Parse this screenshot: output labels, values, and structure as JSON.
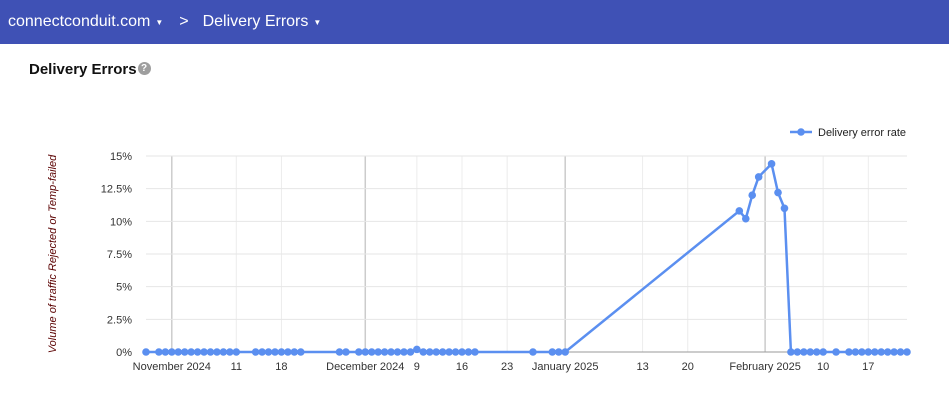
{
  "header": {
    "domain": "connectconduit.com",
    "separator": ">",
    "section": "Delivery Errors"
  },
  "page": {
    "title": "Delivery Errors",
    "help_icon": "question-circle-icon"
  },
  "colors": {
    "header": "#3f51b5",
    "series": "#5b8ff0"
  },
  "chart_data": {
    "type": "line",
    "title": "",
    "xlabel": "",
    "ylabel": "Volume of traffic Rejected or Temp-failed",
    "ylim": [
      0,
      15
    ],
    "yticks": [
      "0%",
      "2.5%",
      "5%",
      "7.5%",
      "10%",
      "12.5%",
      "15%"
    ],
    "ytick_values": [
      0,
      2.5,
      5,
      7.5,
      10,
      12.5,
      15
    ],
    "xlim": [
      "2024-10-28",
      "2025-02-23"
    ],
    "xticks": [
      {
        "date": "2024-11-01",
        "label": "November 2024",
        "month": true
      },
      {
        "date": "2024-11-11",
        "label": "11"
      },
      {
        "date": "2024-11-18",
        "label": "18"
      },
      {
        "date": "2024-12-01",
        "label": "December 2024",
        "month": true
      },
      {
        "date": "2024-12-09",
        "label": "9"
      },
      {
        "date": "2024-12-16",
        "label": "16"
      },
      {
        "date": "2024-12-23",
        "label": "23"
      },
      {
        "date": "2025-01-01",
        "label": "January 2025",
        "month": true
      },
      {
        "date": "2025-01-13",
        "label": "13"
      },
      {
        "date": "2025-01-20",
        "label": "20"
      },
      {
        "date": "2025-02-01",
        "label": "February 2025",
        "month": true
      },
      {
        "date": "2025-02-10",
        "label": "10"
      },
      {
        "date": "2025-02-17",
        "label": "17"
      }
    ],
    "grid": true,
    "legend": "top-right",
    "series": [
      {
        "name": "Delivery error rate",
        "points": [
          [
            "2024-10-28",
            0
          ],
          [
            "2024-10-30",
            0
          ],
          [
            "2024-10-31",
            0
          ],
          [
            "2024-11-01",
            0
          ],
          [
            "2024-11-02",
            0
          ],
          [
            "2024-11-03",
            0
          ],
          [
            "2024-11-04",
            0
          ],
          [
            "2024-11-05",
            0
          ],
          [
            "2024-11-06",
            0
          ],
          [
            "2024-11-07",
            0
          ],
          [
            "2024-11-08",
            0
          ],
          [
            "2024-11-09",
            0
          ],
          [
            "2024-11-10",
            0
          ],
          [
            "2024-11-11",
            0
          ],
          [
            "2024-11-14",
            0
          ],
          [
            "2024-11-15",
            0
          ],
          [
            "2024-11-16",
            0
          ],
          [
            "2024-11-17",
            0
          ],
          [
            "2024-11-18",
            0
          ],
          [
            "2024-11-19",
            0
          ],
          [
            "2024-11-20",
            0
          ],
          [
            "2024-11-21",
            0
          ],
          [
            "2024-11-27",
            0
          ],
          [
            "2024-11-28",
            0
          ],
          [
            "2024-11-30",
            0
          ],
          [
            "2024-12-01",
            0
          ],
          [
            "2024-12-02",
            0
          ],
          [
            "2024-12-03",
            0
          ],
          [
            "2024-12-04",
            0
          ],
          [
            "2024-12-05",
            0
          ],
          [
            "2024-12-06",
            0
          ],
          [
            "2024-12-07",
            0
          ],
          [
            "2024-12-08",
            0
          ],
          [
            "2024-12-09",
            0.2
          ],
          [
            "2024-12-10",
            0
          ],
          [
            "2024-12-11",
            0
          ],
          [
            "2024-12-12",
            0
          ],
          [
            "2024-12-13",
            0
          ],
          [
            "2024-12-14",
            0
          ],
          [
            "2024-12-15",
            0
          ],
          [
            "2024-12-16",
            0
          ],
          [
            "2024-12-17",
            0
          ],
          [
            "2024-12-18",
            0
          ],
          [
            "2024-12-27",
            0
          ],
          [
            "2024-12-30",
            0
          ],
          [
            "2024-12-31",
            0
          ],
          [
            "2025-01-01",
            0
          ],
          [
            "2025-01-28",
            10.8
          ],
          [
            "2025-01-29",
            10.2
          ],
          [
            "2025-01-30",
            12.0
          ],
          [
            "2025-01-31",
            13.4
          ],
          [
            "2025-02-02",
            14.4
          ],
          [
            "2025-02-03",
            12.2
          ],
          [
            "2025-02-04",
            11.0
          ],
          [
            "2025-02-05",
            0
          ],
          [
            "2025-02-06",
            0
          ],
          [
            "2025-02-07",
            0
          ],
          [
            "2025-02-08",
            0
          ],
          [
            "2025-02-09",
            0
          ],
          [
            "2025-02-10",
            0
          ],
          [
            "2025-02-12",
            0
          ],
          [
            "2025-02-14",
            0
          ],
          [
            "2025-02-15",
            0
          ],
          [
            "2025-02-16",
            0
          ],
          [
            "2025-02-17",
            0
          ],
          [
            "2025-02-18",
            0
          ],
          [
            "2025-02-19",
            0
          ],
          [
            "2025-02-20",
            0
          ],
          [
            "2025-02-21",
            0
          ],
          [
            "2025-02-22",
            0
          ],
          [
            "2025-02-23",
            0
          ]
        ]
      }
    ]
  }
}
